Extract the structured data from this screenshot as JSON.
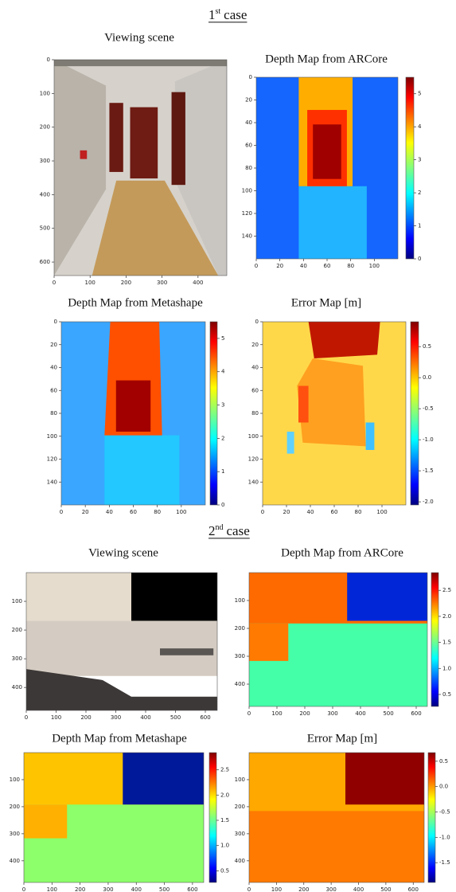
{
  "case_headings": [
    {
      "number": "1",
      "suffix": "st",
      "text": "case"
    },
    {
      "number": "2",
      "suffix": "nd",
      "text": "case"
    }
  ],
  "chart_data": [
    {
      "type": "image",
      "title": "Viewing scene",
      "xlim": [
        0,
        480
      ],
      "ylim": [
        0,
        640
      ],
      "y_inverted": true,
      "xticks": [
        0,
        100,
        200,
        300,
        400
      ],
      "yticks": [
        0,
        100,
        200,
        300,
        400,
        500,
        600
      ]
    },
    {
      "type": "heatmap",
      "title": "Depth Map from ARCore",
      "xlim": [
        0,
        120
      ],
      "ylim": [
        0,
        160
      ],
      "y_inverted": true,
      "xticks": [
        0,
        20,
        40,
        60,
        80,
        100
      ],
      "yticks": [
        0,
        20,
        40,
        60,
        80,
        100,
        120,
        140
      ],
      "colormap": "jet",
      "clim": [
        0,
        5.5
      ],
      "cticks": [
        0,
        1,
        2,
        3,
        4,
        5
      ]
    },
    {
      "type": "heatmap",
      "title": "Depth Map from Metashape",
      "xlim": [
        0,
        120
      ],
      "ylim": [
        0,
        160
      ],
      "y_inverted": true,
      "xticks": [
        0,
        20,
        40,
        60,
        80,
        100
      ],
      "yticks": [
        0,
        20,
        40,
        60,
        80,
        100,
        120,
        140
      ],
      "colormap": "jet",
      "clim": [
        0,
        5.5
      ],
      "cticks": [
        0,
        1,
        2,
        3,
        4,
        5
      ]
    },
    {
      "type": "heatmap",
      "title": "Error Map [m]",
      "xlim": [
        0,
        120
      ],
      "ylim": [
        0,
        160
      ],
      "y_inverted": true,
      "xticks": [
        0,
        20,
        40,
        60,
        80,
        100
      ],
      "yticks": [
        0,
        20,
        40,
        60,
        80,
        100,
        120,
        140
      ],
      "colormap": "jet",
      "clim": [
        -2.05,
        0.9
      ],
      "cticks": [
        0.5,
        {
          "value": 0,
          "label": "0.0"
        },
        -0.5,
        {
          "value": -1,
          "label": "-1.0"
        },
        -1.5,
        {
          "value": -2,
          "label": "-2.0"
        }
      ]
    },
    {
      "type": "image",
      "title": "Viewing scene",
      "xlim": [
        0,
        640
      ],
      "ylim": [
        0,
        480
      ],
      "y_inverted": true,
      "xticks": [
        0,
        100,
        200,
        300,
        400,
        500,
        600
      ],
      "yticks": [
        100,
        200,
        300,
        400
      ]
    },
    {
      "type": "heatmap",
      "title": "Depth Map from ARCore",
      "xlim": [
        0,
        640
      ],
      "ylim": [
        0,
        480
      ],
      "y_inverted": true,
      "xticks": [
        0,
        100,
        200,
        300,
        400,
        500,
        600
      ],
      "yticks": [
        100,
        200,
        300,
        400
      ],
      "colormap": "jet",
      "clim": [
        0.27,
        2.84
      ],
      "cticks": [
        0.5,
        {
          "value": 1,
          "label": "1.0"
        },
        1.5,
        {
          "value": 2,
          "label": "2.0"
        },
        2.5
      ]
    },
    {
      "type": "heatmap",
      "title": "Depth Map from Metashape",
      "xlim": [
        0,
        640
      ],
      "ylim": [
        0,
        480
      ],
      "y_inverted": true,
      "xticks": [
        0,
        100,
        200,
        300,
        400,
        500,
        600
      ],
      "yticks": [
        100,
        200,
        300,
        400
      ],
      "colormap": "jet",
      "clim": [
        0.27,
        2.84
      ],
      "cticks": [
        0.5,
        {
          "value": 1,
          "label": "1.0"
        },
        1.5,
        {
          "value": 2,
          "label": "2.0"
        },
        2.5
      ]
    },
    {
      "type": "heatmap",
      "title": "Error Map [m]",
      "xlim": [
        0,
        640
      ],
      "ylim": [
        0,
        480
      ],
      "y_inverted": true,
      "xticks": [
        0,
        100,
        200,
        300,
        400,
        500,
        600
      ],
      "yticks": [
        100,
        200,
        300,
        400
      ],
      "colormap": "jet",
      "clim": [
        -1.89,
        0.67
      ],
      "cticks": [
        0.5,
        {
          "value": 0,
          "label": "0.0"
        },
        -0.5,
        {
          "value": -1,
          "label": "-1.0"
        },
        -1.5
      ]
    }
  ]
}
